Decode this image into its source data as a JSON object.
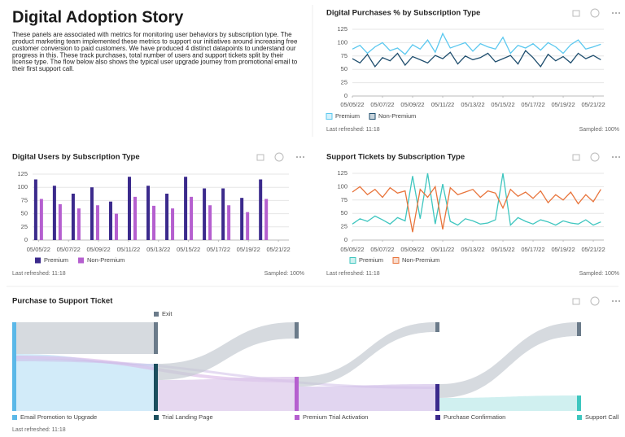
{
  "header": {
    "title": "Digital Adoption Story",
    "paragraph": [
      "These panels are associated with metrics for monitoring user behaviors by subscription type. The",
      "product marketing team implemented these metrics to support our initiatives around increasing free",
      "customer conversion to paid customers. We have produced 4 distinct datapoints to understand our",
      "progress in this. These track purchases, total number of users and support tickets split by their",
      "license type. The flow below also shows the typical user upgrade journey from promotional email to",
      "their first support call."
    ]
  },
  "chart_data": [
    {
      "type": "line",
      "title": "Digital Purchases % by Subscription Type",
      "x": [
        0,
        0.5,
        1,
        1.5,
        2,
        2.5,
        3,
        3.5,
        4,
        4.5,
        5,
        5.5,
        6,
        6.5,
        7,
        7.5,
        8,
        8.5,
        9,
        9.5,
        10,
        10.5,
        11,
        11.5,
        12,
        12.5,
        13,
        13.5,
        14,
        14.5,
        15,
        15.5,
        16,
        16.5
      ],
      "xlim": [
        0,
        16.7
      ],
      "xticks": [
        {
          "value": 0,
          "label": "05/05/22"
        },
        {
          "value": 2,
          "label": "05/07/22"
        },
        {
          "value": 4,
          "label": "05/09/22"
        },
        {
          "value": 6,
          "label": "05/11/22"
        },
        {
          "value": 8,
          "label": "05/13/22"
        },
        {
          "value": 10,
          "label": "05/15/22"
        },
        {
          "value": 12,
          "label": "05/17/22"
        },
        {
          "value": 14,
          "label": "05/19/22"
        },
        {
          "value": 16,
          "label": "05/21/22"
        }
      ],
      "ylim": [
        0,
        125
      ],
      "yticks": [
        0,
        25,
        50,
        75,
        100,
        125
      ],
      "grid": true,
      "series": [
        {
          "name": "Premium",
          "color": "#5bc8ef",
          "values": [
            88,
            95,
            80,
            92,
            100,
            85,
            90,
            78,
            96,
            88,
            105,
            82,
            117,
            90,
            95,
            100,
            84,
            98,
            92,
            88,
            110,
            80,
            95,
            90,
            98,
            86,
            100,
            92,
            80,
            96,
            105,
            88,
            92,
            97
          ]
        },
        {
          "name": "Non-Premium",
          "color": "#1f4e6e",
          "values": [
            70,
            62,
            78,
            55,
            72,
            66,
            80,
            58,
            74,
            68,
            62,
            76,
            70,
            82,
            60,
            75,
            68,
            72,
            80,
            64,
            70,
            76,
            60,
            85,
            72,
            55,
            78,
            66,
            74,
            62,
            80,
            70,
            76,
            68
          ]
        }
      ],
      "footer": [
        "Last refreshed: 11:18",
        "Sampled: 100%"
      ]
    },
    {
      "type": "bar",
      "title": "Digital Users by Subscription Type",
      "x": [
        0,
        1.25,
        2.5,
        3.75,
        5,
        6.25,
        7.5,
        8.75,
        10,
        11.25,
        12.5,
        13.75,
        15
      ],
      "xlim": [
        -0.4,
        16.7
      ],
      "xticks": [
        {
          "value": 0,
          "label": "05/05/22"
        },
        {
          "value": 2,
          "label": "05/07/22"
        },
        {
          "value": 4,
          "label": "05/09/22"
        },
        {
          "value": 6,
          "label": "05/11/22"
        },
        {
          "value": 8,
          "label": "05/13/22"
        },
        {
          "value": 10,
          "label": "05/15/22"
        },
        {
          "value": 12,
          "label": "05/17/22"
        },
        {
          "value": 14,
          "label": "05/19/22"
        },
        {
          "value": 16,
          "label": "05/21/22"
        }
      ],
      "ylim": [
        0,
        125
      ],
      "yticks": [
        0,
        25,
        50,
        75,
        100,
        125
      ],
      "grid": true,
      "series": [
        {
          "name": "Premium",
          "color": "#3b2a8c",
          "values": [
            115,
            103,
            88,
            100,
            73,
            120,
            103,
            88,
            120,
            98,
            98,
            80,
            115
          ]
        },
        {
          "name": "Non-Premium",
          "color": "#b55fcf",
          "values": [
            78,
            68,
            60,
            66,
            50,
            82,
            65,
            60,
            82,
            66,
            66,
            53,
            78
          ]
        }
      ],
      "footer": [
        "Last refreshed: 11:18",
        "Sampled: 100%"
      ]
    },
    {
      "type": "line",
      "title": "Support Tickets by Subscription Type",
      "x": [
        0,
        0.5,
        1,
        1.5,
        2,
        2.5,
        3,
        3.5,
        4,
        4.5,
        5,
        5.5,
        6,
        6.5,
        7,
        7.5,
        8,
        8.5,
        9,
        9.5,
        10,
        10.5,
        11,
        11.5,
        12,
        12.5,
        13,
        13.5,
        14,
        14.5,
        15,
        15.5,
        16,
        16.5
      ],
      "xlim": [
        0,
        16.7
      ],
      "xticks": [
        {
          "value": 0,
          "label": "05/05/22"
        },
        {
          "value": 2,
          "label": "05/07/22"
        },
        {
          "value": 4,
          "label": "05/09/22"
        },
        {
          "value": 6,
          "label": "05/11/22"
        },
        {
          "value": 8,
          "label": "05/13/22"
        },
        {
          "value": 10,
          "label": "05/15/22"
        },
        {
          "value": 12,
          "label": "05/17/22"
        },
        {
          "value": 14,
          "label": "05/19/22"
        },
        {
          "value": 16,
          "label": "05/21/22"
        }
      ],
      "ylim": [
        0,
        125
      ],
      "yticks": [
        0,
        25,
        50,
        75,
        100,
        125
      ],
      "grid": true,
      "series": [
        {
          "name": "Premium",
          "color": "#3ec6bf",
          "values": [
            30,
            40,
            35,
            45,
            38,
            30,
            42,
            36,
            120,
            40,
            125,
            30,
            105,
            35,
            28,
            40,
            36,
            30,
            32,
            38,
            125,
            28,
            42,
            35,
            30,
            38,
            34,
            28,
            36,
            32,
            30,
            38,
            28,
            34
          ]
        },
        {
          "name": "Non-Premium",
          "color": "#e8743b",
          "values": [
            90,
            100,
            85,
            95,
            80,
            98,
            88,
            92,
            15,
            95,
            80,
            100,
            20,
            98,
            85,
            90,
            95,
            80,
            92,
            88,
            60,
            95,
            82,
            90,
            78,
            92,
            70,
            85,
            75,
            90,
            68,
            85,
            72,
            95
          ]
        }
      ],
      "footer": [
        "Last refreshed: 11:18",
        "Sampled: 100%"
      ]
    }
  ],
  "sankey": {
    "title": "Purchase to Support Ticket",
    "exit_label": "Exit",
    "nodes": [
      "Email Promotion to Upgrade",
      "Trial Landing Page",
      "Premium Trial Activation",
      "Purchase Confirmation",
      "Support Call"
    ],
    "footer": "Last refreshed: 11:18"
  }
}
